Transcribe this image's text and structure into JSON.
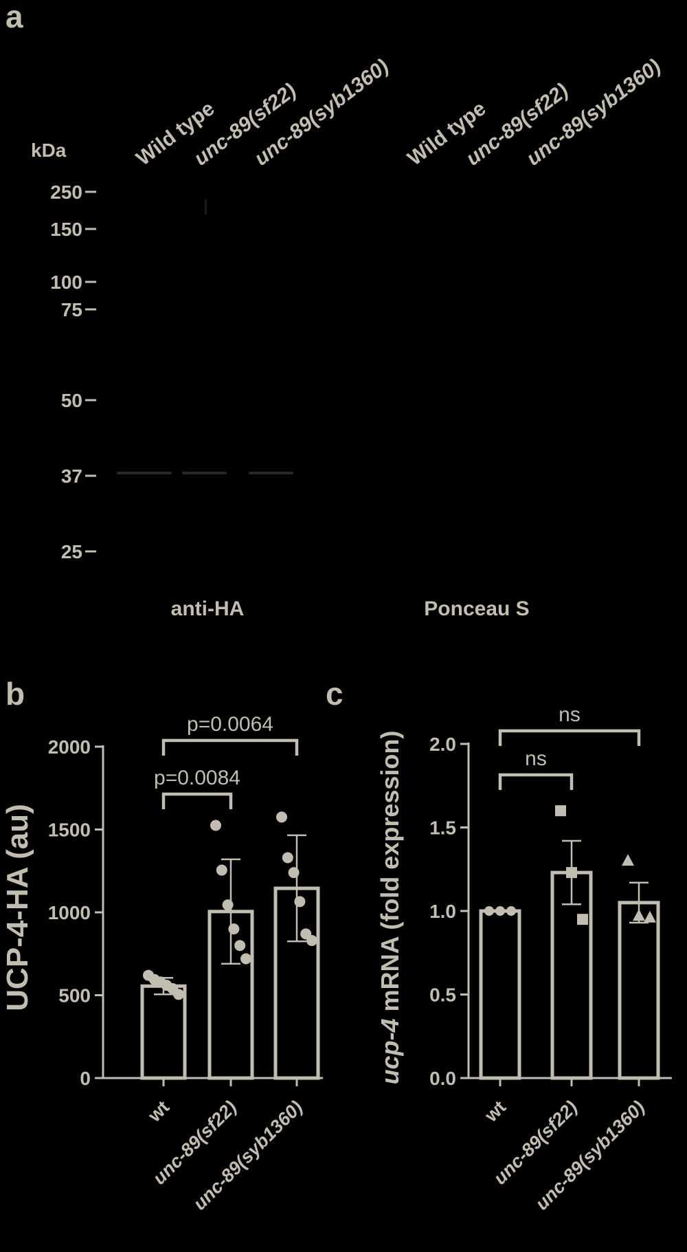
{
  "colors": {
    "background": "#000000",
    "foreground": "#c2bdb1"
  },
  "panel_a": {
    "letter": "a",
    "kda_label": "kDa",
    "markers": [
      "250",
      "150",
      "100",
      "75",
      "50",
      "37",
      "25"
    ],
    "lanes_left": [
      "Wild type",
      "unc-89(sf22)",
      "unc-89(syb1360)"
    ],
    "lanes_right": [
      "Wild type",
      "unc-89(sf22)",
      "unc-89(syb1360)"
    ],
    "label_left": "anti-HA",
    "label_right": "Ponceau S"
  },
  "chart_data": [
    {
      "panel": "b",
      "type": "bar",
      "categories": [
        "wt",
        "unc-89(sf22)",
        "unc-89(syb1360)"
      ],
      "values": [
        555,
        1005,
        1145
      ],
      "error_plus_minus": [
        50,
        315,
        320
      ],
      "points": [
        [
          620,
          595,
          580,
          560,
          540,
          505
        ],
        [
          1525,
          1255,
          1045,
          900,
          800,
          720
        ],
        [
          1575,
          1330,
          1240,
          1065,
          870,
          830
        ]
      ],
      "ylabel": "UCP-4-HA (au)",
      "ylim": [
        0,
        2000
      ],
      "yticks": [
        "0",
        "500",
        "1000",
        "1500",
        "2000"
      ],
      "brackets": [
        {
          "from": "wt",
          "to": "unc-89(sf22)",
          "label": "p=0.0084"
        },
        {
          "from": "wt",
          "to": "unc-89(syb1360)",
          "label": "p=0.0064"
        }
      ]
    },
    {
      "panel": "c",
      "type": "bar",
      "categories": [
        "wt",
        "unc-89(sf22)",
        "unc-89(syb1360)"
      ],
      "values": [
        1.0,
        1.23,
        1.05
      ],
      "error_plus_minus": [
        0.0,
        0.19,
        0.12
      ],
      "points": [
        [
          1.0,
          1.0,
          1.0
        ],
        [
          1.6,
          1.23,
          0.95
        ],
        [
          1.3,
          0.97,
          0.96
        ]
      ],
      "markers": [
        "circle",
        "square",
        "triangle"
      ],
      "ylabel_italic": "ucp-4",
      "ylabel_rest": " mRNA (fold expression)",
      "ylim": [
        0,
        2.0
      ],
      "yticks": [
        "0.0",
        "0.5",
        "1.0",
        "1.5",
        "2.0"
      ],
      "brackets": [
        {
          "from": "wt",
          "to": "unc-89(sf22)",
          "label": "ns"
        },
        {
          "from": "wt",
          "to": "unc-89(syb1360)",
          "label": "ns"
        }
      ]
    }
  ]
}
